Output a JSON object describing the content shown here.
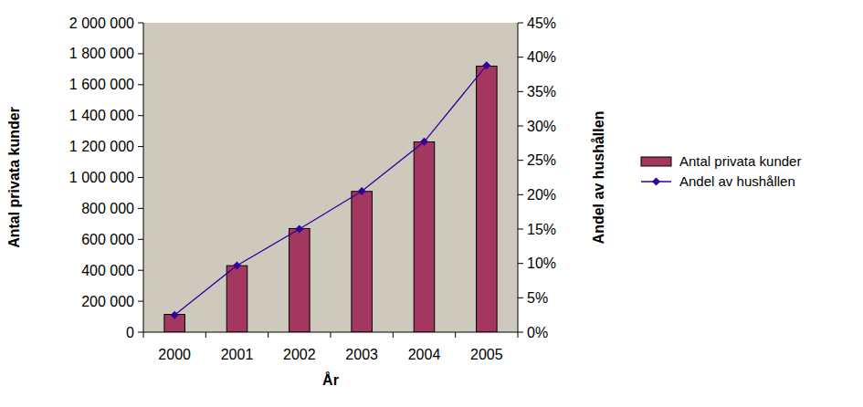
{
  "chart_data": {
    "type": "bar",
    "x_label": "År",
    "y_label": "Antal privata kunder",
    "y2_label": "Andel av hushållen",
    "categories": [
      "2000",
      "2001",
      "2002",
      "2003",
      "2004",
      "2005"
    ],
    "series": [
      {
        "name": "Antal privata kunder",
        "type": "bar",
        "color": "#a3375f",
        "values": [
          115000,
          430000,
          670000,
          910000,
          1230000,
          1720000
        ]
      },
      {
        "name": "Andel av hushållen",
        "type": "line",
        "axis": "y2",
        "color": "#330099",
        "marker": "diamond",
        "line_style": "solid",
        "values": [
          2.5,
          9.7,
          15,
          20.5,
          27.7,
          38.8
        ]
      }
    ],
    "ylim": [
      0,
      2000000
    ],
    "yticks": [
      0,
      {
        "value": 200000,
        "label": "200 000"
      },
      {
        "value": 400000,
        "label": "400 000"
      },
      {
        "value": 600000,
        "label": "600 000"
      },
      {
        "value": 800000,
        "label": "800 000"
      },
      {
        "value": 1000000,
        "label": "1 000 000"
      },
      {
        "value": 1200000,
        "label": "1 200 000"
      },
      {
        "value": 1400000,
        "label": "1 400 000"
      },
      {
        "value": 1600000,
        "label": "1 600 000"
      },
      {
        "value": 1800000,
        "label": "1 800 000"
      },
      {
        "value": 2000000,
        "label": "2 000 000"
      }
    ],
    "y2lim": [
      0,
      45
    ],
    "y2ticks": [
      {
        "value": 0,
        "label": "0%"
      },
      {
        "value": 5,
        "label": "5%"
      },
      {
        "value": 10,
        "label": "10%"
      },
      {
        "value": 15,
        "label": "15%"
      },
      {
        "value": 20,
        "label": "20%"
      },
      {
        "value": 25,
        "label": "25%"
      },
      {
        "value": 30,
        "label": "30%"
      },
      {
        "value": 35,
        "label": "35%"
      },
      {
        "value": 40,
        "label": "40%"
      },
      {
        "value": 45,
        "label": "45%"
      }
    ],
    "grid": false,
    "legend": "right"
  }
}
